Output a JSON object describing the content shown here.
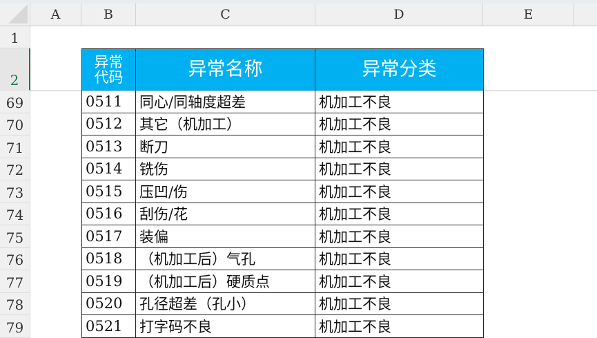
{
  "columns": [
    "A",
    "B",
    "C",
    "D",
    "E"
  ],
  "header_rows": [
    "1",
    "2"
  ],
  "table_header": {
    "code": "异常\n代码",
    "name": "异常名称",
    "category": "异常分类"
  },
  "header_color": "#00b0f0",
  "rows": [
    {
      "row": "69",
      "code": "0511",
      "name": "同心/同轴度超差",
      "category": "机加工不良"
    },
    {
      "row": "70",
      "code": "0512",
      "name": "其它（机加工）",
      "category": "机加工不良"
    },
    {
      "row": "71",
      "code": "0513",
      "name": "断刀",
      "category": "机加工不良"
    },
    {
      "row": "72",
      "code": "0514",
      "name": "铣伤",
      "category": "机加工不良"
    },
    {
      "row": "73",
      "code": "0515",
      "name": "压凹/伤",
      "category": "机加工不良"
    },
    {
      "row": "74",
      "code": "0516",
      "name": "刮伤/花",
      "category": "机加工不良"
    },
    {
      "row": "75",
      "code": "0517",
      "name": "装偏",
      "category": "机加工不良"
    },
    {
      "row": "76",
      "code": "0518",
      "name": "（机加工后）气孔",
      "category": "机加工不良"
    },
    {
      "row": "77",
      "code": "0519",
      "name": "（机加工后）硬质点",
      "category": "机加工不良"
    },
    {
      "row": "78",
      "code": "0520",
      "name": "孔径超差（孔小）",
      "category": "机加工不良"
    },
    {
      "row": "79",
      "code": "0521",
      "name": "打字码不良",
      "category": "机加工不良"
    }
  ]
}
